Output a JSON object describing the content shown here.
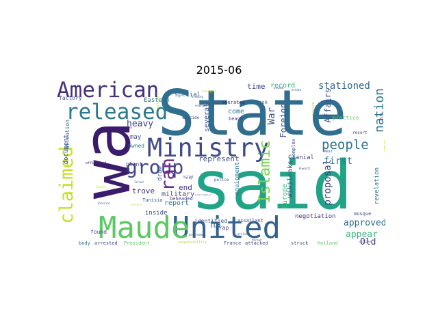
{
  "title": "2015-06",
  "words": [
    {
      "text": "State",
      "color": "#2f6e8e"
    },
    {
      "text": "said",
      "color": "#20a386"
    },
    {
      "text": "wa",
      "color": "#3b1c6c"
    },
    {
      "text": "United",
      "color": "#33628d"
    },
    {
      "text": "Maude",
      "color": "#5cc863"
    },
    {
      "text": "Ministry",
      "color": "#3e4a89"
    },
    {
      "text": "American",
      "color": "#46307a"
    },
    {
      "text": "released",
      "color": "#2a788e"
    },
    {
      "text": "group",
      "color": "#414487"
    },
    {
      "text": "claimed",
      "color": "#c7e020"
    },
    {
      "text": "ran",
      "color": "#6d2b8a"
    },
    {
      "text": "Islamic",
      "color": "#7ad151"
    },
    {
      "text": "people",
      "color": "#2c728e"
    },
    {
      "text": "nation",
      "color": "#2a788e"
    },
    {
      "text": "stationed",
      "color": "#30678d"
    },
    {
      "text": "War",
      "color": "#3d4c89"
    },
    {
      "text": "Foreign",
      "color": "#3b518b"
    },
    {
      "text": "Affairs",
      "color": "#3f4889"
    },
    {
      "text": "proposal",
      "color": "#414487"
    },
    {
      "text": "first",
      "color": "#2a788e"
    },
    {
      "text": "approved",
      "color": "#2f6c8e"
    },
    {
      "text": "appear",
      "color": "#3ab37a"
    },
    {
      "text": "Old",
      "color": "#433c84"
    },
    {
      "text": "heavy",
      "color": "#433e85"
    },
    {
      "text": "document",
      "color": "#3c4f8a"
    },
    {
      "text": "attention",
      "color": "#2f6b8e"
    },
    {
      "text": "factory",
      "color": "#3f4889"
    },
    {
      "text": "Eastern",
      "color": "#2e6f8e"
    },
    {
      "text": "special",
      "color": "#31688e"
    },
    {
      "text": "time",
      "color": "#404387"
    },
    {
      "text": "record",
      "color": "#35b779"
    },
    {
      "text": "come",
      "color": "#2a788e"
    },
    {
      "text": "several",
      "color": "#3a538b"
    },
    {
      "text": "represent",
      "color": "#3b528b"
    },
    {
      "text": "end",
      "color": "#453581"
    },
    {
      "text": "military",
      "color": "#414487"
    },
    {
      "text": "report",
      "color": "#2a788e"
    },
    {
      "text": "trove",
      "color": "#472d7b"
    },
    {
      "text": "draw",
      "color": "#3a548c"
    },
    {
      "text": "may",
      "color": "#3b518b"
    },
    {
      "text": "owned",
      "color": "#2a788e"
    },
    {
      "text": "plant",
      "color": "#3e4a89"
    },
    {
      "text": "Tunisia",
      "color": "#35608d"
    },
    {
      "text": "beheaded",
      "color": "#453882"
    },
    {
      "text": "inside",
      "color": "#3d4e8a"
    },
    {
      "text": "ha",
      "color": "#31688e"
    },
    {
      "text": "equipment",
      "color": "#2a788e"
    },
    {
      "text": "Cranial",
      "color": "#414487"
    },
    {
      "text": "Europe",
      "color": "#35b779"
    },
    {
      "text": "Wikileaks",
      "color": "#3b518b"
    },
    {
      "text": "revelation",
      "color": "#2f6c8e"
    },
    {
      "text": "negotiation",
      "color": "#482878"
    },
    {
      "text": "found",
      "color": "#3f4889"
    },
    {
      "text": "body",
      "color": "#2f6c8e"
    },
    {
      "text": "arrested",
      "color": "#414487"
    },
    {
      "text": "President",
      "color": "#5ec962"
    },
    {
      "text": "identified",
      "color": "#3b528b"
    },
    {
      "text": "wrap",
      "color": "#414487"
    },
    {
      "text": "assailant",
      "color": "#3f4889"
    },
    {
      "text": "mosque",
      "color": "#3f4889"
    },
    {
      "text": "struck",
      "color": "#3b528b"
    },
    {
      "text": "Holland",
      "color": "#5ec962"
    },
    {
      "text": "France",
      "color": "#3b528b"
    },
    {
      "text": "attacked",
      "color": "#3f4889"
    },
    {
      "text": "responsibility",
      "color": "#b5de2b"
    },
    {
      "text": "police",
      "color": "#3b528b"
    },
    {
      "text": "Complex",
      "color": "#3b528b"
    },
    {
      "text": "practice",
      "color": "#6ece58"
    },
    {
      "text": "resort",
      "color": "#3f4889"
    },
    {
      "text": "look",
      "color": "#35608d"
    },
    {
      "text": "beach",
      "color": "#3f4889"
    },
    {
      "text": "operated",
      "color": "#482878"
    },
    {
      "text": "suicide",
      "color": "#3b528b"
    },
    {
      "text": "ISIS",
      "color": "#3b528b"
    },
    {
      "text": "Nait",
      "color": "#3b528b"
    },
    {
      "text": "killed",
      "color": "#3f4889"
    },
    {
      "text": "nuclear",
      "color": "#3b528b"
    },
    {
      "text": "attack",
      "color": "#3f4889"
    },
    {
      "text": "estate",
      "color": "#3b528b"
    },
    {
      "text": "blaming",
      "color": "#3b528b"
    },
    {
      "text": "coming",
      "color": "#c7e020"
    },
    {
      "text": "interrogation",
      "color": "#3b528b"
    },
    {
      "text": "government",
      "color": "#3b528b"
    },
    {
      "text": "threat",
      "color": "#3b528b"
    },
    {
      "text": "arrived",
      "color": "#3b528b"
    },
    {
      "text": "citizen",
      "color": "#3f4889"
    },
    {
      "text": "Kuwaiti",
      "color": "#3b528b"
    },
    {
      "text": "affiliated",
      "color": "#482878"
    },
    {
      "text": "Interior",
      "color": "#3b528b"
    },
    {
      "text": "soldier",
      "color": "#c7e020"
    },
    {
      "text": "Israel",
      "color": "#3b528b"
    },
    {
      "text": "target",
      "color": "#c7e020"
    },
    {
      "text": "enabled",
      "color": "#3f4889"
    },
    {
      "text": "army",
      "color": "#3b528b"
    },
    {
      "text": "area",
      "color": "#482878"
    },
    {
      "text": "insurgent",
      "color": "#c7e020"
    },
    {
      "text": "accused",
      "color": "#3b528b"
    },
    {
      "text": "militant",
      "color": "#c7e020"
    },
    {
      "text": "victim",
      "color": "#c7e020"
    }
  ]
}
